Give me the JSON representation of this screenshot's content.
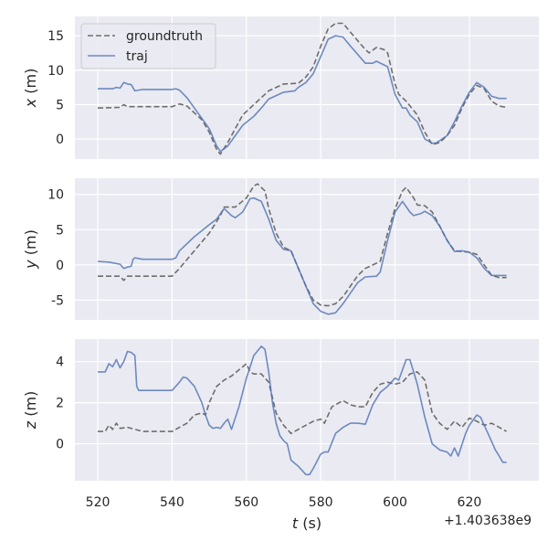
{
  "chart_data": [
    {
      "type": "line",
      "ylabel_var": "x",
      "ylabel_unit": " (m)",
      "ylim": [
        -2.9,
        17.8
      ],
      "xlim": [
        513.85,
        638.7
      ],
      "yticks": [
        0,
        5,
        10,
        15
      ],
      "grid": true,
      "legend": "top-left",
      "series": [
        {
          "name": "groundtruth",
          "style": "dashed",
          "color": "#6e6e6e",
          "x": [
            520,
            526,
            527,
            528,
            540,
            542,
            544,
            546,
            548,
            550,
            552,
            553,
            555,
            557,
            559,
            562,
            566,
            570,
            574,
            576,
            578,
            580,
            582,
            584,
            586,
            588,
            592,
            593,
            595,
            597,
            598,
            600,
            601,
            603,
            606,
            608,
            610,
            612,
            614,
            616,
            618,
            620,
            622,
            624,
            626,
            628,
            630
          ],
          "y": [
            4.5,
            4.6,
            5.0,
            4.7,
            4.7,
            5.1,
            4.8,
            3.8,
            2.8,
            1.0,
            -1.5,
            -2.2,
            -0.5,
            1.5,
            3.5,
            5.0,
            7.0,
            8.0,
            8.1,
            9.0,
            10.5,
            13.5,
            16.0,
            16.8,
            16.8,
            15.5,
            13.0,
            12.5,
            13.3,
            13.0,
            12.5,
            8.0,
            6.5,
            5.5,
            3.5,
            1.0,
            -0.8,
            -0.5,
            0.5,
            2.0,
            4.5,
            6.5,
            7.8,
            7.3,
            5.5,
            4.8,
            4.6
          ]
        },
        {
          "name": "traj",
          "style": "solid",
          "color": "#4c72b0",
          "x": [
            520,
            524,
            525,
            526,
            527,
            528,
            529,
            530,
            532,
            540,
            541,
            542,
            544,
            546,
            548,
            550,
            552,
            553,
            555,
            557,
            559,
            562,
            564,
            566,
            570,
            573,
            574,
            576,
            578,
            580,
            582,
            584,
            586,
            588,
            592,
            594,
            595,
            598,
            600,
            602,
            603,
            604,
            606,
            608,
            610,
            611,
            614,
            616,
            618,
            620,
            622,
            624,
            626,
            628,
            630
          ],
          "y": [
            7.3,
            7.3,
            7.5,
            7.4,
            8.2,
            8.0,
            7.9,
            7.0,
            7.2,
            7.2,
            7.3,
            7.1,
            6.0,
            4.5,
            3.0,
            1.5,
            -1.0,
            -1.8,
            -1.0,
            0.5,
            2.0,
            3.3,
            4.5,
            5.8,
            6.8,
            7.0,
            7.5,
            8.2,
            9.5,
            12.0,
            14.5,
            15.0,
            14.8,
            13.5,
            11.0,
            11.0,
            11.3,
            10.5,
            6.5,
            4.5,
            4.5,
            3.5,
            2.5,
            0.0,
            -0.6,
            -0.6,
            0.5,
            2.5,
            4.8,
            6.8,
            8.2,
            7.5,
            6.2,
            5.9,
            5.9
          ]
        }
      ]
    },
    {
      "type": "line",
      "ylabel_var": "y",
      "ylabel_unit": " (m)",
      "ylim": [
        -7.8,
        12.3
      ],
      "xlim": [
        513.85,
        638.7
      ],
      "yticks": [
        -5,
        0,
        5,
        10
      ],
      "grid": true,
      "series": [
        {
          "name": "groundtruth",
          "style": "dashed",
          "color": "#6e6e6e",
          "x": [
            520,
            526,
            527,
            528,
            540,
            542,
            546,
            550,
            553,
            554,
            557,
            560,
            562,
            563,
            565,
            566,
            568,
            570,
            572,
            574,
            576,
            578,
            580,
            582,
            584,
            586,
            588,
            590,
            592,
            594,
            596,
            598,
            600,
            602,
            603,
            605,
            606,
            608,
            610,
            612,
            614,
            616,
            618,
            620,
            622,
            624,
            626,
            628,
            630
          ],
          "y": [
            -1.6,
            -1.6,
            -2.2,
            -1.6,
            -1.6,
            -0.5,
            2.0,
            4.5,
            7.0,
            8.2,
            8.2,
            9.5,
            11.2,
            11.5,
            10.5,
            8.0,
            4.5,
            2.5,
            2.0,
            -0.5,
            -3.0,
            -5.0,
            -5.7,
            -5.8,
            -5.5,
            -4.5,
            -3.0,
            -1.5,
            -0.5,
            0.0,
            0.5,
            4.5,
            8.0,
            10.5,
            11.0,
            9.5,
            8.5,
            8.4,
            7.5,
            5.5,
            3.5,
            2.0,
            1.9,
            1.8,
            1.5,
            0.0,
            -1.5,
            -1.8,
            -1.8
          ]
        },
        {
          "name": "traj",
          "style": "solid",
          "color": "#4c72b0",
          "x": [
            520,
            523,
            526,
            527,
            528,
            529,
            529.5,
            530,
            532,
            540,
            541,
            542,
            546,
            550,
            552,
            554,
            556,
            557,
            559,
            561,
            562,
            564,
            566,
            568,
            570,
            572,
            574,
            576,
            578,
            580,
            582,
            584,
            586,
            588,
            590,
            592,
            595,
            596,
            598,
            600,
            602,
            604,
            605,
            607,
            608,
            610,
            612,
            614,
            616,
            618,
            620,
            622,
            624,
            626,
            628,
            630
          ],
          "y": [
            0.5,
            0.4,
            0.1,
            -0.5,
            -0.3,
            -0.2,
            0.8,
            1.0,
            0.8,
            0.8,
            1.0,
            2.0,
            4.0,
            5.7,
            6.5,
            8.0,
            7.0,
            6.7,
            7.5,
            9.4,
            9.5,
            9.0,
            6.5,
            3.5,
            2.2,
            2.0,
            -0.5,
            -3.0,
            -5.5,
            -6.6,
            -7.0,
            -6.8,
            -5.5,
            -4.0,
            -2.5,
            -1.7,
            -1.6,
            -1.0,
            3.5,
            7.5,
            9.0,
            7.5,
            7.0,
            7.3,
            7.6,
            7.0,
            5.5,
            3.5,
            1.9,
            2.0,
            1.8,
            1.0,
            -0.5,
            -1.5,
            -1.5,
            -1.5
          ]
        }
      ]
    },
    {
      "type": "line",
      "ylabel_var": "z",
      "ylabel_unit": " (m)",
      "ylim": [
        -1.8,
        5.1
      ],
      "xlim": [
        513.85,
        638.7
      ],
      "yticks": [
        0,
        2,
        4
      ],
      "xticks": [
        520,
        540,
        560,
        580,
        600,
        620
      ],
      "xlabel_var": "t",
      "xlabel_unit": " (s)",
      "x_offset_label": "+1.403638e9",
      "grid": true,
      "series": [
        {
          "name": "groundtruth",
          "style": "dashed",
          "color": "#6e6e6e",
          "x": [
            520,
            522,
            523,
            524,
            525,
            526,
            528,
            530,
            532,
            540,
            542,
            544,
            546,
            548,
            549,
            550,
            552,
            554,
            556,
            558,
            560,
            561,
            562,
            564,
            566,
            568,
            570,
            572,
            574,
            576,
            578,
            580,
            581,
            583,
            585,
            586,
            588,
            590,
            592,
            594,
            596,
            598,
            600,
            602,
            604,
            606,
            608,
            610,
            612,
            614,
            616,
            618,
            620,
            622,
            624,
            626,
            628,
            630
          ],
          "y": [
            0.6,
            0.6,
            0.9,
            0.7,
            1.0,
            0.75,
            0.8,
            0.7,
            0.6,
            0.6,
            0.8,
            1.0,
            1.4,
            1.5,
            1.4,
            2.0,
            2.8,
            3.1,
            3.3,
            3.6,
            3.9,
            3.5,
            3.4,
            3.4,
            3.0,
            1.5,
            0.9,
            0.5,
            0.7,
            0.9,
            1.1,
            1.2,
            1.0,
            1.8,
            2.0,
            2.1,
            1.9,
            1.8,
            1.8,
            2.5,
            2.9,
            3.0,
            2.9,
            3.0,
            3.4,
            3.5,
            3.1,
            1.5,
            1.0,
            0.7,
            1.1,
            0.8,
            1.25,
            1.1,
            0.9,
            1.0,
            0.8,
            0.6
          ]
        },
        {
          "name": "traj",
          "style": "solid",
          "color": "#4c72b0",
          "x": [
            520,
            522,
            523,
            524,
            525,
            526,
            527,
            528,
            529,
            530,
            530.5,
            531,
            540,
            542,
            543,
            544,
            546,
            548,
            549,
            550,
            551,
            552,
            553,
            554,
            555,
            556,
            558,
            560,
            562,
            564,
            565,
            566,
            567,
            568,
            569,
            570,
            571,
            572,
            574,
            576,
            577,
            578,
            580,
            581,
            582,
            584,
            586,
            588,
            590,
            592,
            594,
            596,
            598,
            600,
            601,
            603,
            604,
            606,
            608,
            610,
            612,
            614,
            615,
            616,
            617,
            619,
            620,
            622,
            623,
            625,
            627,
            628,
            629,
            630
          ],
          "y": [
            3.5,
            3.5,
            3.9,
            3.75,
            4.1,
            3.7,
            4.0,
            4.5,
            4.45,
            4.3,
            2.8,
            2.6,
            2.6,
            3.0,
            3.25,
            3.2,
            2.8,
            2.0,
            1.4,
            0.9,
            0.75,
            0.8,
            0.75,
            1.0,
            1.2,
            0.7,
            1.8,
            3.2,
            4.3,
            4.75,
            4.6,
            3.5,
            2.0,
            1.0,
            0.4,
            0.15,
            0.0,
            -0.8,
            -1.1,
            -1.5,
            -1.5,
            -1.2,
            -0.5,
            -0.4,
            -0.4,
            0.5,
            0.8,
            1.0,
            1.0,
            0.95,
            1.9,
            2.5,
            2.8,
            3.2,
            3.1,
            4.1,
            4.1,
            2.9,
            1.3,
            0.0,
            -0.3,
            -0.4,
            -0.6,
            -0.2,
            -0.6,
            0.5,
            0.9,
            1.4,
            1.3,
            0.5,
            -0.3,
            -0.6,
            -0.9,
            -0.9
          ]
        }
      ]
    }
  ]
}
